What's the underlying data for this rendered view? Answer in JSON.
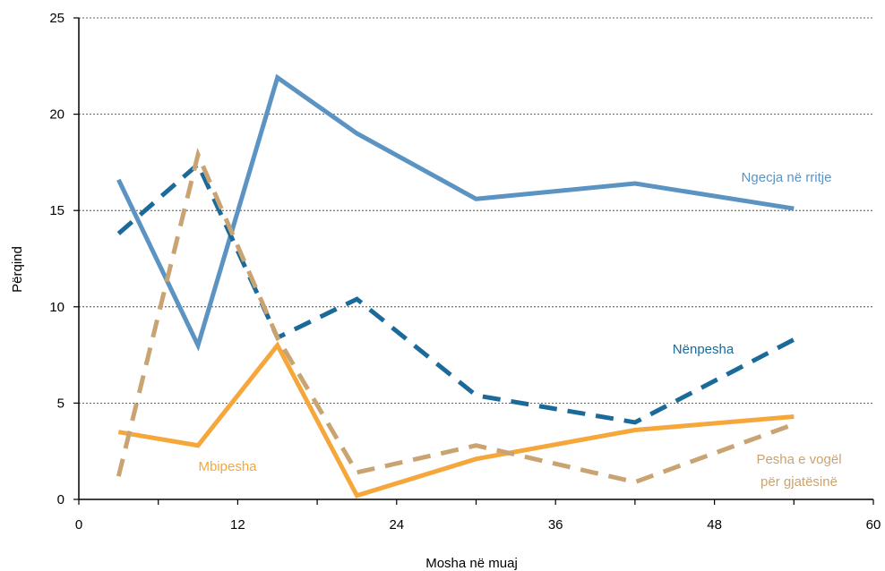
{
  "chart_data": {
    "type": "line",
    "title": "",
    "xlabel": "Mosha në muaj",
    "ylabel": "Përqind",
    "xlim": [
      0,
      60
    ],
    "ylim": [
      0,
      25
    ],
    "xticks": [
      0,
      12,
      24,
      36,
      48,
      60
    ],
    "yticks": [
      0,
      5,
      10,
      15,
      20,
      25
    ],
    "grid": "horizontal dotted",
    "series": [
      {
        "name": "Ngecja në rritje",
        "color": "#5B93C3",
        "dash": "solid",
        "x": [
          3,
          9,
          15,
          21,
          30,
          42,
          54
        ],
        "y": [
          16.6,
          8.0,
          21.9,
          19.0,
          15.6,
          16.4,
          15.1
        ]
      },
      {
        "name": "Nënpesha",
        "color": "#1A6A9A",
        "dash": "dashed",
        "x": [
          3,
          9,
          15,
          21,
          30,
          42,
          54
        ],
        "y": [
          13.8,
          17.4,
          8.4,
          10.4,
          5.4,
          4.0,
          8.3
        ]
      },
      {
        "name": "Mbipesha",
        "color": "#F5A73B",
        "dash": "solid",
        "x": [
          3,
          9,
          15,
          21,
          30,
          42,
          54
        ],
        "y": [
          3.5,
          2.8,
          8.0,
          0.2,
          2.1,
          3.6,
          4.3
        ]
      },
      {
        "name": "Pesha e vogël për gjatësinë",
        "label_lines": [
          "Pesha e vogël",
          "për gjatësinë"
        ],
        "color": "#C9A472",
        "dash": "dashed",
        "x": [
          3,
          9,
          15,
          21,
          30,
          42,
          54
        ],
        "y": [
          1.2,
          17.9,
          8.4,
          1.4,
          2.8,
          0.9,
          3.9
        ]
      }
    ]
  }
}
